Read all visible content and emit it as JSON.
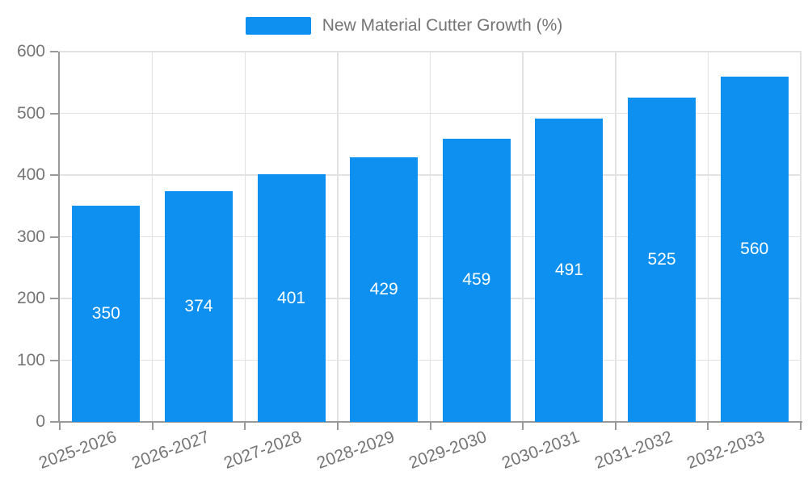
{
  "chart_data": {
    "type": "bar",
    "title": "",
    "xlabel": "",
    "ylabel": "",
    "legend_position": "top-center",
    "grid": true,
    "categories": [
      "2025-2026",
      "2026-2027",
      "2027-2028",
      "2028-2029",
      "2029-2030",
      "2030-2031",
      "2031-2032",
      "2032-2033"
    ],
    "series": [
      {
        "name": "New Material Cutter Growth (%)",
        "values": [
          350,
          374,
          401,
          429,
          459,
          491,
          525,
          560
        ]
      }
    ],
    "ylim": [
      0,
      600
    ],
    "yticks": [
      0,
      100,
      200,
      300,
      400,
      500,
      600
    ],
    "colors": {
      "bar": "#0e90f0",
      "bar_label": "#ffffff",
      "axis": "#999999",
      "grid": "#e2e2e2",
      "text": "#757575"
    }
  }
}
